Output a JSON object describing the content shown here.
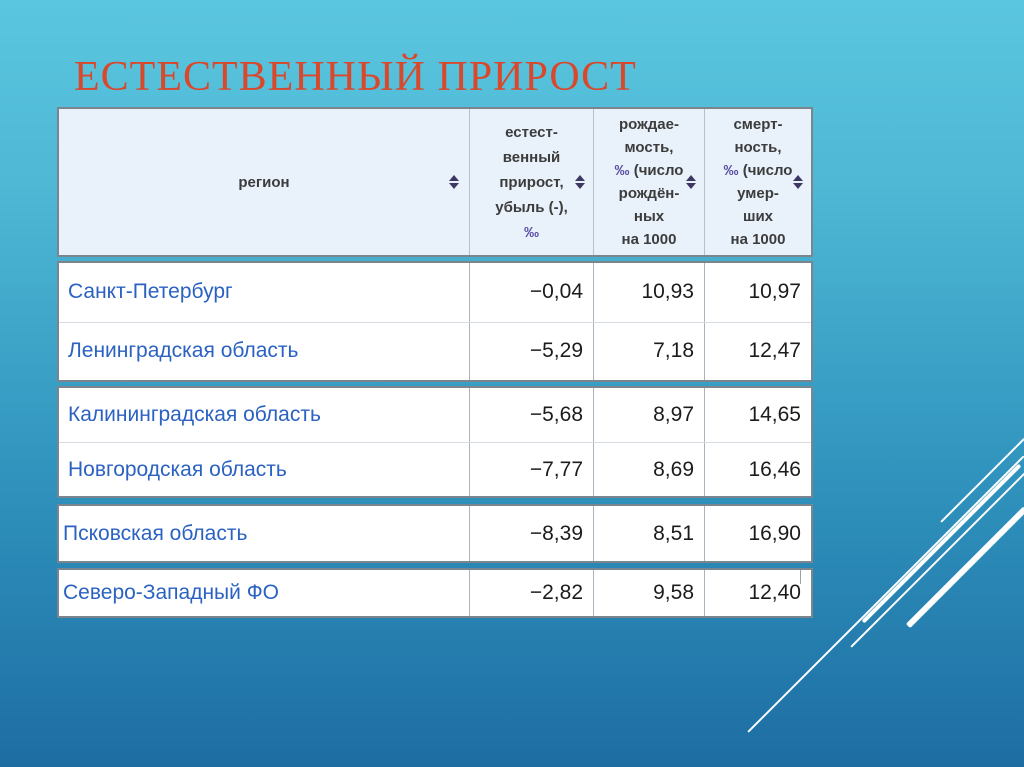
{
  "slide": {
    "title": "ЕСТЕСТВЕННЫЙ ПРИРОСТ"
  },
  "colors": {
    "background_top": "#5bc6df",
    "background_bottom": "#1d6da3",
    "title": "#d9482b",
    "header_bg": "#e9f1fa",
    "header_text": "#3c3c3c",
    "permille_symbol": "#5b4da3",
    "region_link": "#2b62c2",
    "value_text": "#1c1c1c",
    "accent_lines": "#ffffff"
  },
  "icons": {
    "sort": "sort-arrows-up-down"
  },
  "table": {
    "header": {
      "region_column": {
        "label": "регион"
      },
      "value_columns": [
        {
          "lines": [
            "естест-",
            "венный",
            "прирост,",
            "убыль (-),",
            "‰"
          ]
        },
        {
          "lines": [
            "рождае-",
            "мость,",
            "‰ (число",
            "рождён-",
            "ных",
            "на 1000"
          ]
        },
        {
          "lines": [
            "смерт-",
            "ность,",
            "‰ (число",
            "умер-",
            "ших",
            "на 1000"
          ]
        }
      ]
    },
    "blocks": [
      {
        "rows": [
          {
            "region": "Санкт-Петербург",
            "values": [
              "−0,04",
              "10,93",
              "10,97"
            ]
          },
          {
            "region": "Ленинградская область",
            "values": [
              "−5,29",
              "7,18",
              "12,47"
            ]
          }
        ]
      },
      {
        "rows": [
          {
            "region": "Калининградская область",
            "values": [
              "−5,68",
              "8,97",
              "14,65"
            ]
          },
          {
            "region": "Новгородская область",
            "values": [
              "−7,77",
              "8,69",
              "16,46"
            ]
          }
        ]
      },
      {
        "rows": [
          {
            "region": "Псковская область",
            "values": [
              "−8,39",
              "8,51",
              "16,90"
            ]
          }
        ]
      },
      {
        "rows": [
          {
            "region": "Северо-Западный ФО",
            "values": [
              "−2,82",
              "9,58",
              "12,40"
            ]
          }
        ]
      }
    ]
  }
}
